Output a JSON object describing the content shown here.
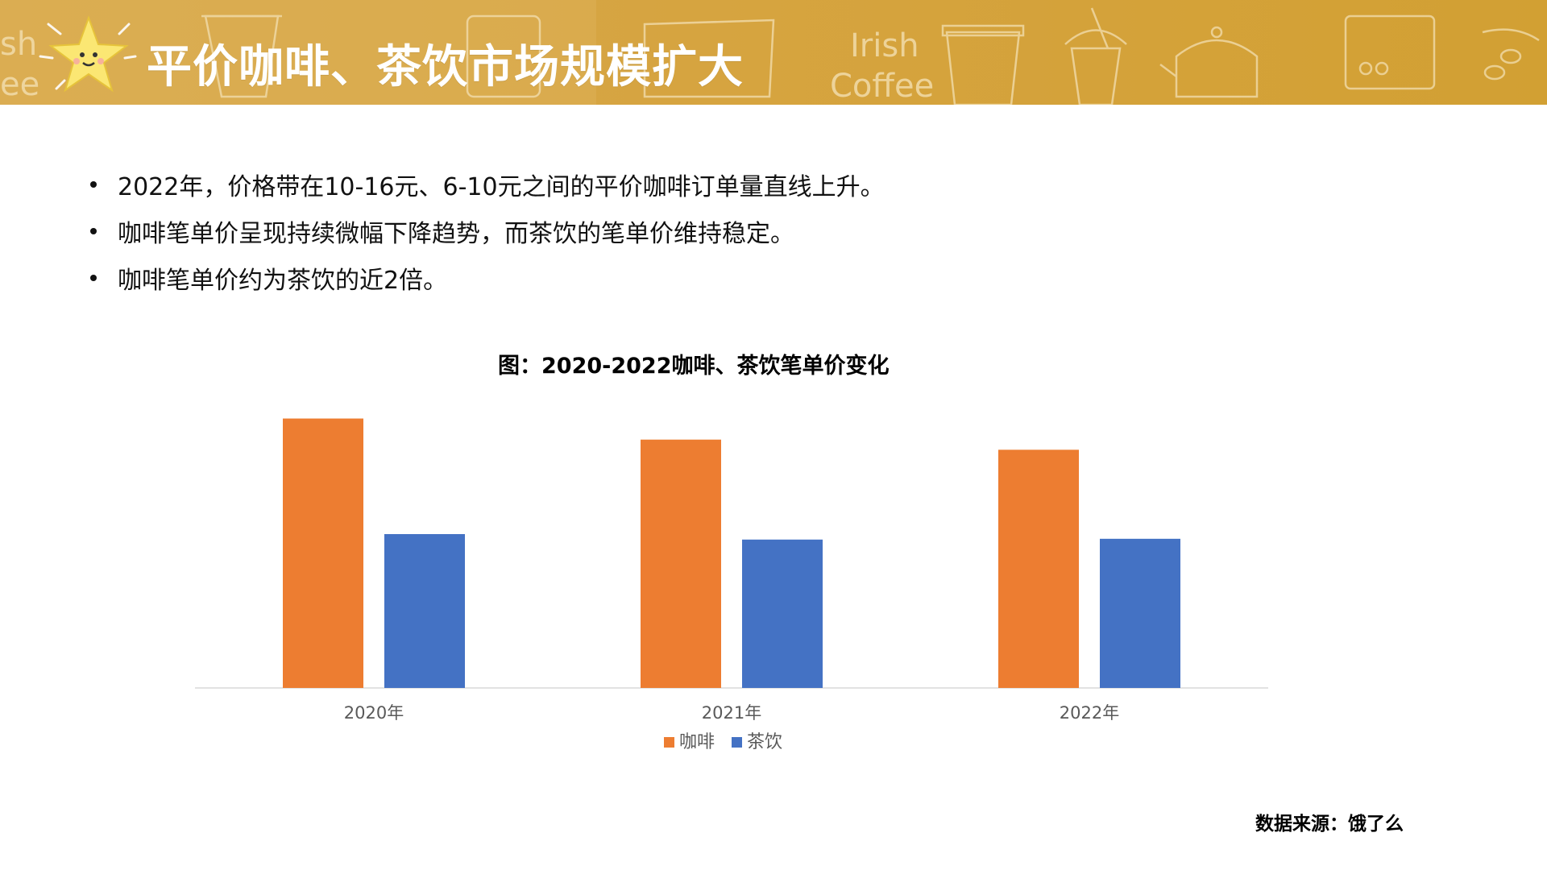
{
  "header": {
    "title": "平价咖啡、茶饮市场规模扩大",
    "decor_text_1": "Irish",
    "decor_text_2": "Coffee",
    "decor_text_3": "sh",
    "decor_text_4": "ee",
    "background_color": "#d6a440"
  },
  "bullets": [
    {
      "text": "2022年，价格带在10-16元、6-10元之间的平价咖啡订单量直线上升。"
    },
    {
      "text": "咖啡笔单价呈现持续微幅下降趋势，而茶饮的笔单价维持稳定。"
    },
    {
      "text": "咖啡笔单价约为茶饮的近2倍。"
    }
  ],
  "chart_data": {
    "type": "bar",
    "title": "图：2020-2022咖啡、茶饮笔单价变化",
    "categories": [
      "2020年",
      "2021年",
      "2022年"
    ],
    "series": [
      {
        "name": "咖啡",
        "color": "#ed7d31",
        "values": [
          34.5,
          31.8,
          30.5
        ]
      },
      {
        "name": "茶饮",
        "color": "#4472c4",
        "values": [
          19.7,
          19.0,
          19.1
        ]
      }
    ],
    "ylim": [
      0,
      36
    ],
    "grid": false,
    "legend_position": "bottom"
  },
  "footer": {
    "source": "数据来源：饿了么"
  }
}
